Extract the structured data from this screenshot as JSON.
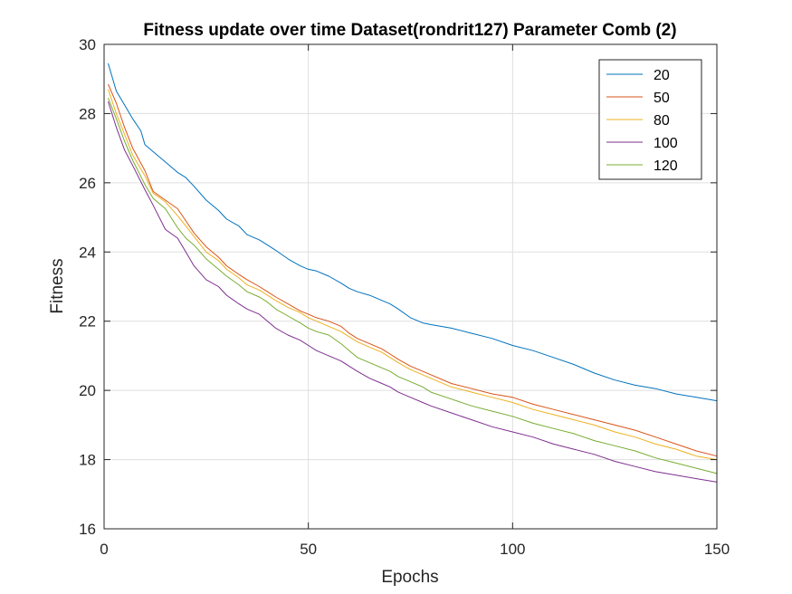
{
  "chart_data": {
    "type": "line",
    "title": "Fitness update over time Dataset(rondrit127) Parameter Comb (2)",
    "xlabel": "Epochs",
    "ylabel": "Fitness",
    "xlim": [
      0,
      150
    ],
    "ylim": [
      16,
      30
    ],
    "xticks": [
      0,
      50,
      100,
      150
    ],
    "yticks": [
      16,
      18,
      20,
      22,
      24,
      26,
      28,
      30
    ],
    "grid": true,
    "legend_position": "top-right",
    "series": [
      {
        "name": "20",
        "color": "#0072BD",
        "x": [
          1,
          3,
          5,
          7,
          9,
          10,
          12,
          15,
          18,
          20,
          22,
          25,
          28,
          30,
          33,
          35,
          38,
          40,
          42,
          45,
          48,
          50,
          52,
          55,
          58,
          60,
          62,
          65,
          68,
          70,
          72,
          75,
          78,
          80,
          85,
          90,
          95,
          100,
          105,
          110,
          115,
          120,
          125,
          130,
          135,
          140,
          145,
          150
        ],
        "y": [
          29.45,
          28.65,
          28.25,
          27.85,
          27.5,
          27.1,
          26.9,
          26.6,
          26.3,
          26.15,
          25.9,
          25.5,
          25.2,
          24.95,
          24.75,
          24.5,
          24.35,
          24.2,
          24.05,
          23.8,
          23.6,
          23.5,
          23.45,
          23.3,
          23.1,
          22.95,
          22.85,
          22.75,
          22.6,
          22.5,
          22.35,
          22.1,
          21.95,
          21.9,
          21.8,
          21.65,
          21.5,
          21.3,
          21.15,
          20.95,
          20.75,
          20.5,
          20.3,
          20.15,
          20.05,
          19.9,
          19.8,
          19.7
        ]
      },
      {
        "name": "50",
        "color": "#D95319",
        "x": [
          1,
          3,
          5,
          7,
          10,
          12,
          15,
          18,
          20,
          22,
          25,
          28,
          30,
          33,
          35,
          38,
          40,
          42,
          45,
          48,
          50,
          52,
          55,
          58,
          60,
          62,
          65,
          68,
          70,
          72,
          75,
          78,
          80,
          85,
          90,
          95,
          100,
          105,
          110,
          115,
          120,
          125,
          130,
          135,
          140,
          145,
          150
        ],
        "y": [
          28.85,
          28.3,
          27.6,
          27.0,
          26.35,
          25.75,
          25.5,
          25.25,
          24.9,
          24.55,
          24.15,
          23.85,
          23.6,
          23.35,
          23.2,
          23.0,
          22.85,
          22.7,
          22.5,
          22.3,
          22.2,
          22.1,
          22.0,
          21.85,
          21.65,
          21.5,
          21.35,
          21.2,
          21.05,
          20.9,
          20.7,
          20.55,
          20.45,
          20.2,
          20.05,
          19.9,
          19.8,
          19.6,
          19.45,
          19.3,
          19.15,
          19.0,
          18.85,
          18.65,
          18.45,
          18.25,
          18.1
        ]
      },
      {
        "name": "80",
        "color": "#EDB120",
        "x": [
          1,
          3,
          5,
          7,
          10,
          12,
          15,
          18,
          20,
          22,
          25,
          28,
          30,
          33,
          35,
          38,
          40,
          42,
          45,
          48,
          50,
          52,
          55,
          58,
          60,
          62,
          65,
          68,
          70,
          72,
          75,
          78,
          80,
          85,
          90,
          95,
          100,
          105,
          110,
          115,
          120,
          125,
          130,
          135,
          140,
          145,
          150
        ],
        "y": [
          28.7,
          28.0,
          27.4,
          26.8,
          26.2,
          25.7,
          25.45,
          25.05,
          24.75,
          24.45,
          24.0,
          23.75,
          23.5,
          23.25,
          23.05,
          22.9,
          22.75,
          22.6,
          22.4,
          22.25,
          22.1,
          22.0,
          21.85,
          21.7,
          21.55,
          21.4,
          21.25,
          21.1,
          20.95,
          20.8,
          20.6,
          20.45,
          20.35,
          20.1,
          19.95,
          19.8,
          19.65,
          19.45,
          19.3,
          19.15,
          19.0,
          18.8,
          18.65,
          18.45,
          18.3,
          18.1,
          18.0
        ]
      },
      {
        "name": "100",
        "color": "#7E2F8E",
        "x": [
          1,
          3,
          5,
          7,
          10,
          12,
          15,
          18,
          20,
          22,
          25,
          28,
          30,
          33,
          35,
          38,
          40,
          42,
          45,
          48,
          50,
          52,
          55,
          58,
          60,
          62,
          65,
          68,
          70,
          72,
          75,
          78,
          80,
          85,
          90,
          95,
          100,
          105,
          110,
          115,
          120,
          125,
          130,
          135,
          140,
          145,
          150
        ],
        "y": [
          28.35,
          27.6,
          26.95,
          26.5,
          25.8,
          25.35,
          24.65,
          24.4,
          24.0,
          23.6,
          23.2,
          23.0,
          22.75,
          22.5,
          22.35,
          22.2,
          22.0,
          21.8,
          21.6,
          21.45,
          21.3,
          21.15,
          21.0,
          20.85,
          20.7,
          20.55,
          20.35,
          20.2,
          20.1,
          19.95,
          19.8,
          19.65,
          19.55,
          19.35,
          19.15,
          18.95,
          18.8,
          18.65,
          18.45,
          18.3,
          18.15,
          17.95,
          17.8,
          17.65,
          17.55,
          17.45,
          17.35
        ]
      },
      {
        "name": "120",
        "color": "#77AC30",
        "x": [
          1,
          3,
          5,
          7,
          10,
          12,
          15,
          18,
          20,
          22,
          25,
          28,
          30,
          33,
          35,
          38,
          40,
          42,
          45,
          48,
          50,
          52,
          55,
          58,
          60,
          62,
          65,
          68,
          70,
          72,
          75,
          78,
          80,
          85,
          90,
          95,
          100,
          105,
          110,
          115,
          120,
          125,
          130,
          135,
          140,
          145,
          150
        ],
        "y": [
          28.45,
          27.85,
          27.2,
          26.65,
          25.95,
          25.55,
          25.25,
          24.7,
          24.4,
          24.2,
          23.8,
          23.5,
          23.3,
          23.05,
          22.85,
          22.7,
          22.55,
          22.35,
          22.15,
          21.95,
          21.8,
          21.7,
          21.6,
          21.35,
          21.15,
          20.95,
          20.8,
          20.65,
          20.55,
          20.4,
          20.25,
          20.1,
          19.95,
          19.75,
          19.55,
          19.4,
          19.25,
          19.05,
          18.9,
          18.75,
          18.55,
          18.4,
          18.25,
          18.05,
          17.9,
          17.75,
          17.6
        ]
      }
    ]
  }
}
